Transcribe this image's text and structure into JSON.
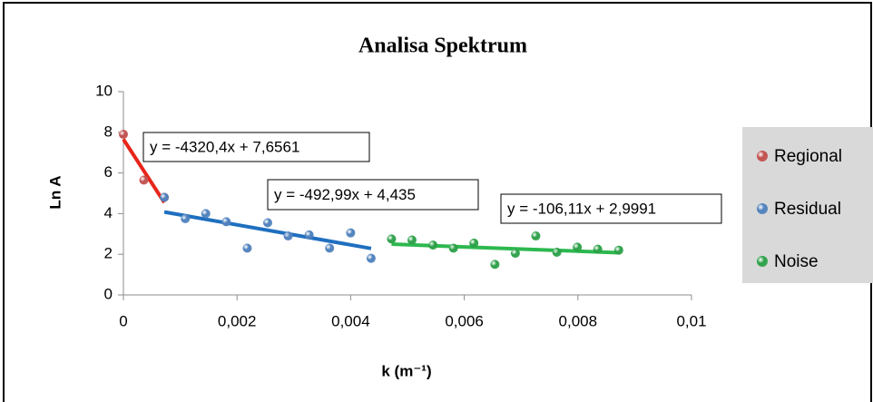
{
  "chart_data": {
    "type": "scatter",
    "title": "Analisa Spektrum",
    "xlabel": "k (m⁻¹)",
    "ylabel": "Ln A",
    "xlim": [
      0,
      0.01
    ],
    "ylim": [
      0,
      10
    ],
    "xticks": [
      0,
      {
        "value": 0.002,
        "label": "0,002"
      },
      {
        "value": 0.004,
        "label": "0,004"
      },
      {
        "value": 0.006,
        "label": "0,006"
      },
      {
        "value": 0.008,
        "label": "0,008"
      },
      {
        "value": 0.01,
        "label": "0,01"
      }
    ],
    "yticks": [
      0,
      2,
      4,
      6,
      8,
      10
    ],
    "legend": "right",
    "series": [
      {
        "name": "Regional",
        "color": "#c0504d",
        "line_color": "#e8251a",
        "x": [
          0,
          0.00036,
          0.00072
        ],
        "values": [
          7.9,
          5.65,
          4.8
        ],
        "trendline": {
          "slope": -4320.4,
          "intercept": 7.6561,
          "label": "y = -4320,4x + 7,6561"
        }
      },
      {
        "name": "Residual",
        "color": "#4f81bd",
        "line_color": "#1f6fbf",
        "x": [
          0.00072,
          0.00109,
          0.00145,
          0.00181,
          0.00218,
          0.00254,
          0.0029,
          0.00327,
          0.00363,
          0.004,
          0.00436
        ],
        "values": [
          4.8,
          3.75,
          4.0,
          3.6,
          2.3,
          3.55,
          2.9,
          2.95,
          2.3,
          3.05,
          1.8
        ],
        "trendline": {
          "slope": -492.99,
          "intercept": 4.435,
          "label": "y = -492,99x + 4,435"
        }
      },
      {
        "name": "Noise",
        "color": "#2ca048",
        "line_color": "#2db84f",
        "x": [
          0.00472,
          0.00508,
          0.00545,
          0.00581,
          0.00617,
          0.00654,
          0.0069,
          0.00726,
          0.00763,
          0.00799,
          0.00835,
          0.00872
        ],
        "values": [
          2.75,
          2.7,
          2.45,
          2.3,
          2.55,
          1.5,
          2.05,
          2.9,
          2.1,
          2.35,
          2.25,
          2.2
        ],
        "trendline": {
          "slope": -106.11,
          "intercept": 2.9991,
          "label": "y = -106,11x + 2,9991"
        }
      }
    ]
  }
}
